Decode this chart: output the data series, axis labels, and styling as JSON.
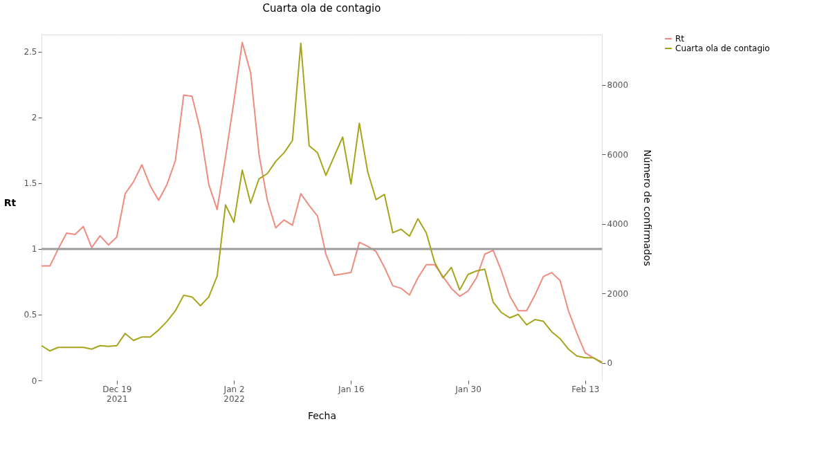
{
  "chart_data": {
    "type": "line",
    "title": "Cuarta ola de contagio",
    "xlabel": "Fecha",
    "ylabel": "Rt",
    "y2label": "Número de confirmados",
    "x": [
      "2021-12-10",
      "2021-12-11",
      "2021-12-12",
      "2021-12-13",
      "2021-12-14",
      "2021-12-15",
      "2021-12-16",
      "2021-12-17",
      "2021-12-18",
      "2021-12-19",
      "2021-12-20",
      "2021-12-21",
      "2021-12-22",
      "2021-12-23",
      "2021-12-24",
      "2021-12-25",
      "2021-12-26",
      "2021-12-27",
      "2021-12-28",
      "2021-12-29",
      "2021-12-30",
      "2021-12-31",
      "2022-01-01",
      "2022-01-02",
      "2022-01-03",
      "2022-01-04",
      "2022-01-05",
      "2022-01-06",
      "2022-01-07",
      "2022-01-08",
      "2022-01-09",
      "2022-01-10",
      "2022-01-11",
      "2022-01-12",
      "2022-01-13",
      "2022-01-14",
      "2022-01-15",
      "2022-01-16",
      "2022-01-17",
      "2022-01-18",
      "2022-01-19",
      "2022-01-20",
      "2022-01-21",
      "2022-01-22",
      "2022-01-23",
      "2022-01-24",
      "2022-01-25",
      "2022-01-26",
      "2022-01-27",
      "2022-01-28",
      "2022-01-29",
      "2022-01-30",
      "2022-01-31",
      "2022-02-01",
      "2022-02-02",
      "2022-02-03",
      "2022-02-04",
      "2022-02-05",
      "2022-02-06",
      "2022-02-07",
      "2022-02-08",
      "2022-02-09",
      "2022-02-10",
      "2022-02-11",
      "2022-02-12",
      "2022-02-13",
      "2022-02-14",
      "2022-02-15"
    ],
    "series": [
      {
        "name": "Rt",
        "color": "#ee8a7e",
        "values": [
          0.87,
          0.87,
          1.0,
          1.12,
          1.11,
          1.17,
          1.01,
          1.1,
          1.03,
          1.09,
          1.42,
          1.51,
          1.64,
          1.48,
          1.37,
          1.49,
          1.67,
          2.17,
          2.16,
          1.9,
          1.49,
          1.3,
          1.7,
          2.12,
          2.57,
          2.34,
          1.72,
          1.37,
          1.16,
          1.22,
          1.18,
          1.42,
          1.33,
          1.25,
          0.96,
          0.8,
          0.81,
          0.82,
          1.05,
          1.02,
          0.98,
          0.86,
          0.72,
          0.7,
          0.65,
          0.78,
          0.88,
          0.88,
          0.79,
          0.7,
          0.64,
          0.68,
          0.78,
          0.96,
          0.99,
          0.83,
          0.64,
          0.53,
          0.53,
          0.65,
          0.79,
          0.82,
          0.76,
          0.53,
          0.36,
          0.21,
          0.17,
          0.14
        ]
      },
      {
        "name": "Cuarta ola de contagio",
        "color": "#a5a41a",
        "axis": "y2",
        "values": [
          500,
          350,
          450,
          450,
          450,
          450,
          400,
          500,
          480,
          500,
          850,
          650,
          750,
          750,
          950,
          1200,
          1500,
          1950,
          1900,
          1650,
          1900,
          2500,
          4550,
          4050,
          5550,
          4600,
          5300,
          5450,
          5800,
          6050,
          6400,
          9200,
          6250,
          6050,
          5400,
          5950,
          6500,
          5150,
          6900,
          5500,
          4700,
          4850,
          3750,
          3850,
          3650,
          4150,
          3750,
          2900,
          2450,
          2750,
          2100,
          2550,
          2650,
          2700,
          1750,
          1450,
          1300,
          1400,
          1100,
          1250,
          1200,
          900,
          700,
          400,
          200,
          150,
          150,
          0
        ]
      }
    ],
    "ylim": [
      0,
      2.63
    ],
    "yticks": [
      0,
      0.5,
      1,
      1.5,
      2,
      2.5
    ],
    "y2lim": [
      -500,
      9450
    ],
    "y2ticks": [
      0,
      2000,
      4000,
      6000,
      8000
    ],
    "xlim": [
      "2021-12-10",
      "2022-02-15"
    ],
    "xticks": [
      {
        "value": "2021-12-19",
        "label": "Dec 19\n2021"
      },
      {
        "value": "2022-01-02",
        "label": "Jan 2\n2022"
      },
      {
        "value": "2022-01-16",
        "label": "Jan 16"
      },
      {
        "value": "2022-01-30",
        "label": "Jan 30"
      },
      {
        "value": "2022-02-13",
        "label": "Feb 13"
      }
    ],
    "ref_lines": [
      {
        "axis": "y",
        "value": 1,
        "color": "#9a9a9a"
      }
    ],
    "grid": true,
    "legend": "top right"
  }
}
